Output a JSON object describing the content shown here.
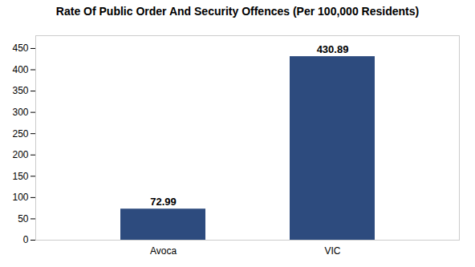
{
  "chart_data": {
    "type": "bar",
    "title": "Rate Of Public Order And Security Offences (Per 100,000 Residents)",
    "categories": [
      "Avoca",
      "VIC"
    ],
    "values": [
      72.99,
      430.89
    ],
    "color": "#2d4b7e",
    "ylim": [
      0,
      480
    ],
    "yticks": [
      0,
      50,
      100,
      150,
      200,
      250,
      300,
      350,
      400,
      450
    ],
    "grid": false,
    "data_labels": true
  }
}
